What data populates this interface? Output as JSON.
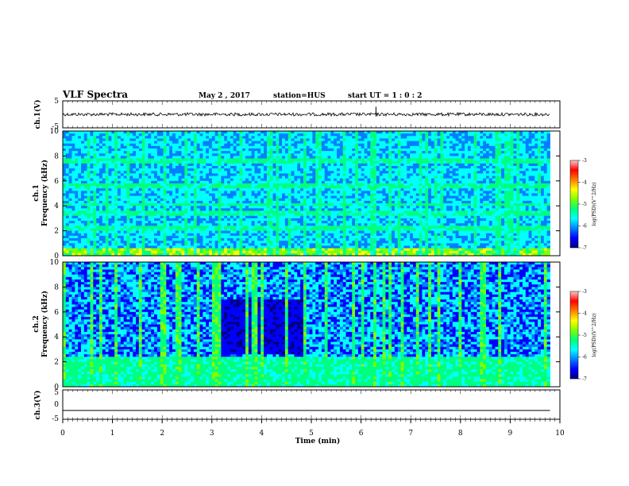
{
  "header": {
    "title": "VLF Spectra",
    "date": "May 2 , 2017",
    "station": "station=HUS",
    "start_ut": "start UT = 1 : 0 : 2"
  },
  "colors": {
    "spectrogram_colormap": [
      "#00007f",
      "#0000ff",
      "#007fff",
      "#00ffff",
      "#00ff7f",
      "#7fff00",
      "#ffff00",
      "#ff7f00",
      "#ff0000",
      "#ffc8c8"
    ],
    "trace": "#000000",
    "frame": "#000000"
  },
  "chart_data": [
    {
      "type": "line",
      "name": "ch1-waveform",
      "ylabel": "ch.1(V)",
      "ylim": [
        -5,
        5
      ],
      "yticks": [
        5,
        -5
      ],
      "xlim": [
        0,
        10
      ],
      "x": [
        0,
        1,
        2,
        3,
        4,
        5,
        6,
        6.2,
        6.3,
        7,
        8,
        9,
        9.8
      ],
      "y": [
        0,
        0,
        0,
        0,
        0,
        0,
        0,
        0,
        0,
        0,
        0,
        0,
        0
      ],
      "note_spike_x": 6.3
    },
    {
      "type": "heatmap",
      "name": "ch1-spectrogram",
      "ylabel": "ch.1 Frequency (kHz)",
      "ylim": [
        0,
        10
      ],
      "yticks": [
        0,
        2,
        4,
        6,
        8,
        10
      ],
      "xlim": [
        0,
        10
      ],
      "data_xmax": 9.8,
      "colorbar": {
        "label": "log(PSD)(V^2/Hz)",
        "range": [
          -7,
          -3
        ],
        "ticks": [
          -3,
          -4,
          -5,
          -6,
          -7
        ]
      }
    },
    {
      "type": "heatmap",
      "name": "ch2-spectrogram",
      "ylabel": "ch.2 Frequency (kHz)",
      "ylim": [
        0,
        10
      ],
      "yticks": [
        0,
        2,
        4,
        6,
        8,
        10
      ],
      "xlim": [
        0,
        10
      ],
      "data_xmax": 9.8,
      "colorbar": {
        "label": "log(PSD)(V^2/Hz)",
        "range": [
          -7,
          -3
        ],
        "ticks": [
          -3,
          -4,
          -5,
          -6,
          -7
        ]
      }
    },
    {
      "type": "line",
      "name": "ch3-waveform",
      "ylabel": "ch.3(V)",
      "ylim": [
        -5,
        5
      ],
      "yticks": [
        5,
        0,
        -5
      ],
      "xlim": [
        0,
        10
      ],
      "x": [
        0,
        9.8
      ],
      "y": [
        -2,
        -2
      ]
    }
  ],
  "xaxis": {
    "label": "Time (min)",
    "ticks": [
      0,
      1,
      2,
      3,
      4,
      5,
      6,
      7,
      8,
      9,
      10
    ]
  }
}
